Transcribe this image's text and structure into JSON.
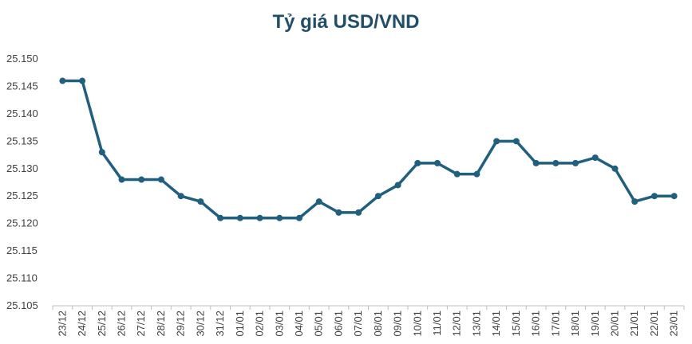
{
  "chart_data": {
    "type": "line",
    "title": "Tỷ giá USD/VND",
    "xlabel": "",
    "ylabel": "",
    "ylim": [
      25105,
      25150
    ],
    "yticks": [
      "25.105",
      "25.110",
      "25.115",
      "25.120",
      "25.125",
      "25.130",
      "25.135",
      "25.140",
      "25.145",
      "25.150"
    ],
    "grid": false,
    "line_color": "#1f5f7f",
    "categories": [
      "23/12",
      "24/12",
      "25/12",
      "26/12",
      "27/12",
      "28/12",
      "29/12",
      "30/12",
      "31/12",
      "01/01",
      "02/01",
      "03/01",
      "04/01",
      "05/01",
      "06/01",
      "07/01",
      "08/01",
      "09/01",
      "10/01",
      "11/01",
      "12/01",
      "13/01",
      "14/01",
      "15/01",
      "16/01",
      "17/01",
      "18/01",
      "19/01",
      "20/01",
      "21/01",
      "22/01",
      "23/01"
    ],
    "series": [
      {
        "values": [
          25146,
          25146,
          25133,
          25128,
          25128,
          25128,
          25125,
          25124,
          25121,
          25121,
          25121,
          25121,
          25121,
          25124,
          25122,
          25122,
          25125,
          25127,
          25131,
          25131,
          25129,
          25129,
          25135,
          25135,
          25131,
          25131,
          25131,
          25132,
          25130,
          25124,
          25125,
          25125
        ]
      }
    ]
  }
}
